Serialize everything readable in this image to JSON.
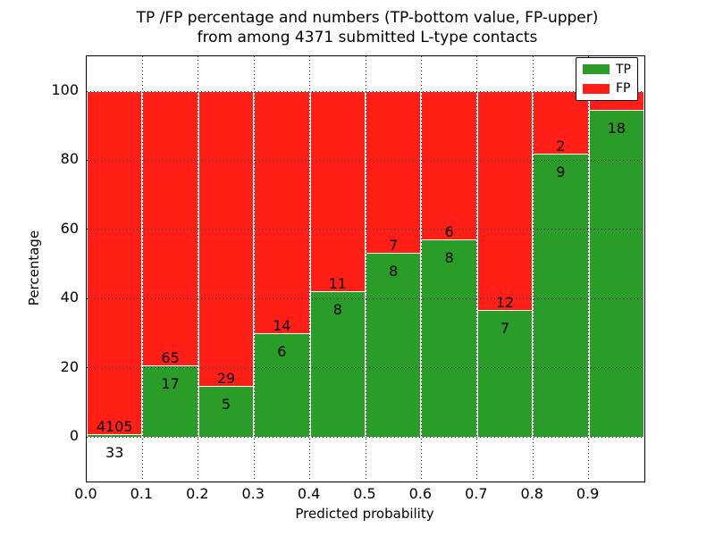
{
  "title": {
    "line1": "TP /FP percentage and numbers (TP-bottom value, FP-upper)",
    "line2": "from among 4371 submitted L-type contacts"
  },
  "x_axis": {
    "label": "Predicted probability",
    "ticks": [
      "0.0",
      "0.1",
      "0.2",
      "0.3",
      "0.4",
      "0.5",
      "0.6",
      "0.7",
      "0.8",
      "0.9"
    ]
  },
  "y_axis": {
    "label": "Percentage",
    "ticks": [
      "0",
      "20",
      "40",
      "60",
      "80",
      "100"
    ]
  },
  "legend": {
    "items": [
      {
        "label": "TP",
        "color": "#2a9c28"
      },
      {
        "label": "FP",
        "color": "#ff1f17"
      }
    ]
  },
  "colors": {
    "tp": "#2a9c28",
    "fp": "#ff1f17",
    "grid": "#000000",
    "background": "#ffffff"
  },
  "chart_data": {
    "type": "bar",
    "subtype": "stacked-percentage-histogram",
    "title": "TP /FP percentage and numbers (TP-bottom value, FP-upper) from among 4371 submitted L-type contacts",
    "xlabel": "Predicted probability",
    "ylabel": "Percentage",
    "ylim": [
      0,
      100
    ],
    "grid": true,
    "legend_position": "upper right",
    "total_submitted": 4371,
    "bin_width": 0.1,
    "bin_starts": [
      0.0,
      0.1,
      0.2,
      0.3,
      0.4,
      0.5,
      0.6,
      0.7,
      0.8,
      0.9
    ],
    "series": [
      {
        "name": "TP",
        "counts": [
          33,
          17,
          5,
          6,
          8,
          8,
          8,
          7,
          9,
          18
        ]
      },
      {
        "name": "FP",
        "counts": [
          4105,
          65,
          29,
          14,
          11,
          7,
          6,
          12,
          2,
          null
        ]
      }
    ],
    "tp_percent": [
      0.8,
      20.7,
      14.7,
      30.0,
      42.1,
      53.3,
      57.1,
      36.8,
      81.8,
      94.7
    ],
    "tp_labels": [
      "33",
      "17",
      "5",
      "6",
      "8",
      "8",
      "8",
      "7",
      "9",
      "18"
    ],
    "fp_labels": [
      "4105",
      "65",
      "29",
      "14",
      "11",
      "7",
      "6",
      "12",
      "2",
      ""
    ]
  }
}
